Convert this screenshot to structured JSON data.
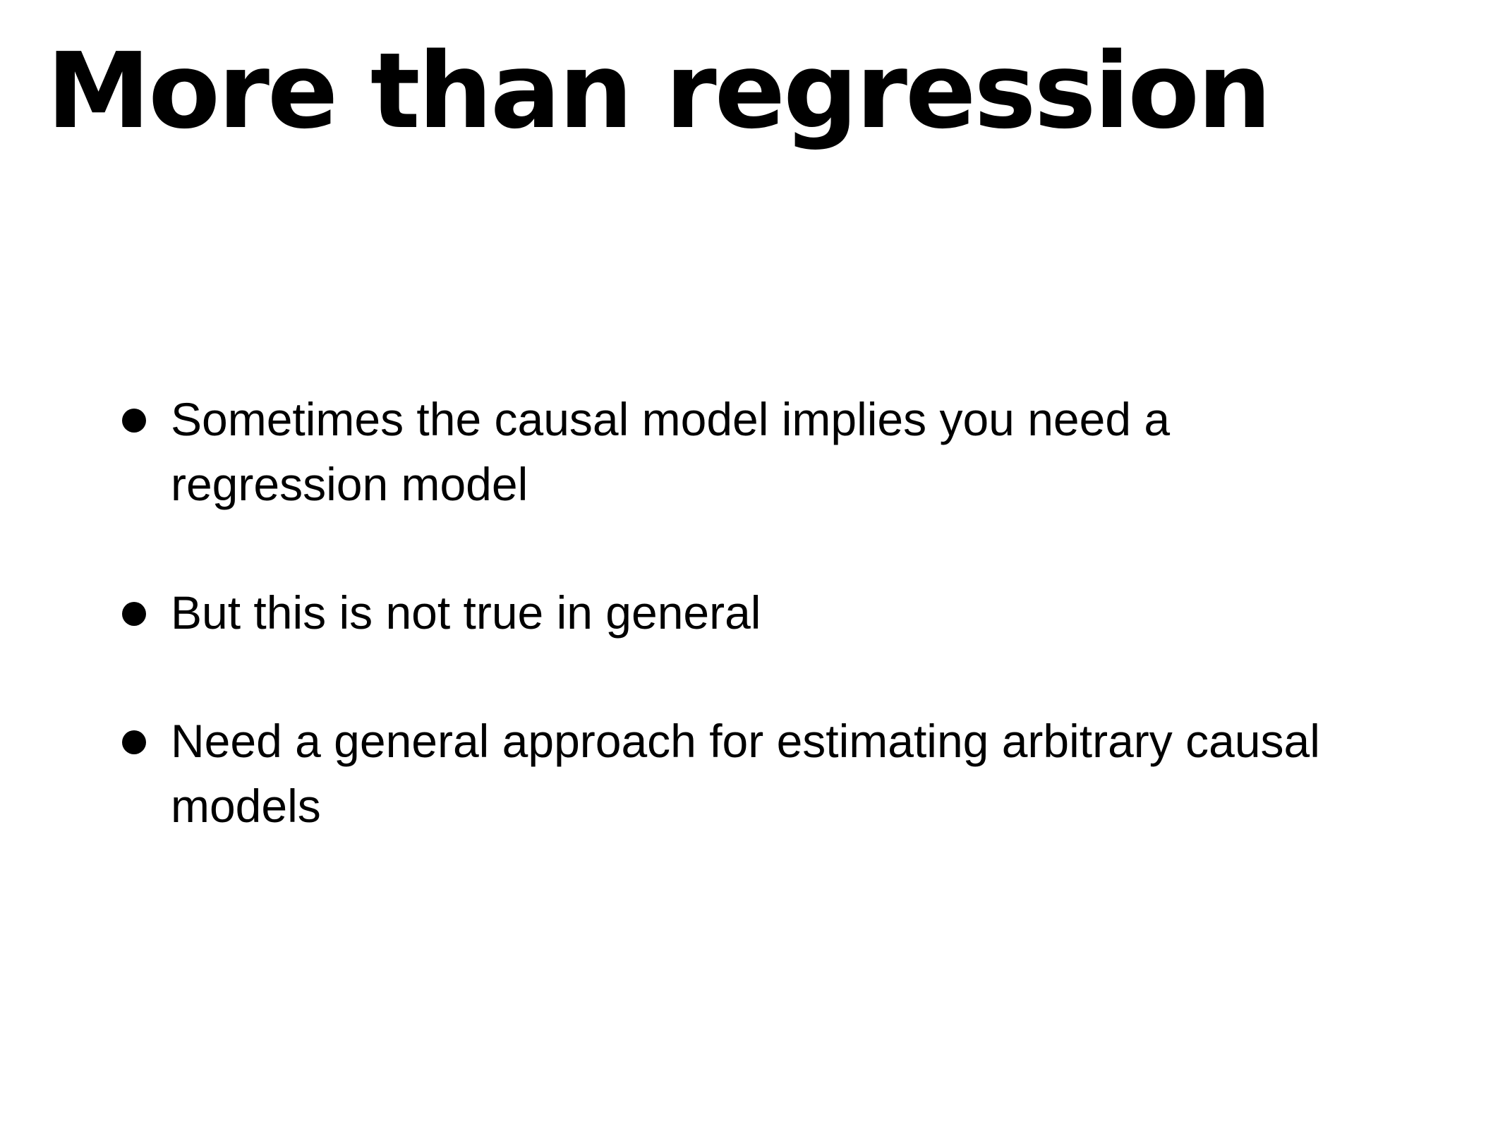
{
  "slide": {
    "title": "More than regression",
    "bullets": [
      {
        "line1": "Sometimes the causal model implies you need a",
        "line2": "regression model"
      },
      {
        "line1": "But this is not true in general",
        "line2": ""
      },
      {
        "line1": "Need a general approach for estimating arbitrary causal",
        "line2": "models"
      }
    ]
  }
}
